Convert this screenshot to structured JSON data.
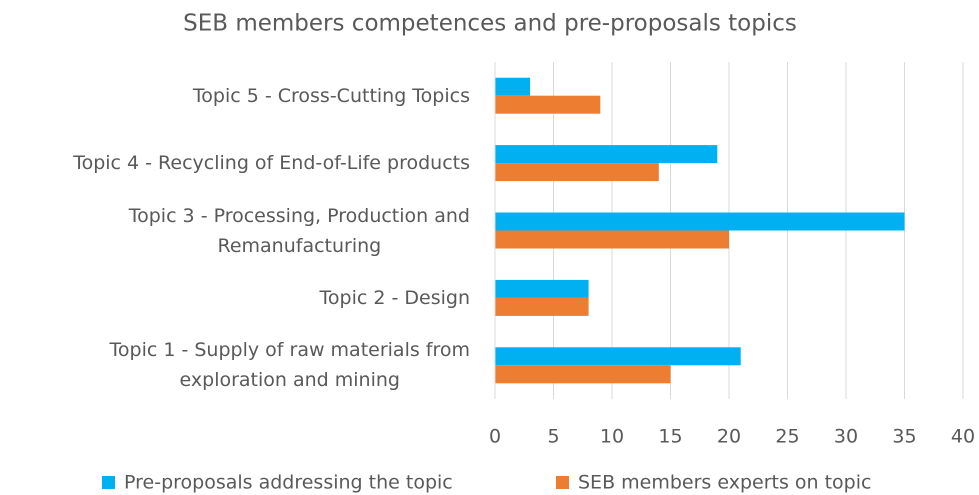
{
  "chart_data": {
    "type": "hbar",
    "title": "SEB members competences and pre-proposals topics",
    "categories": [
      "Topic 5 - Cross-Cutting Topics",
      "Topic 4 - Recycling of End-of-Life products",
      "Topic 3 - Processing, Production and\nRemanufacturing",
      "Topic 2 -  Design",
      "Topic 1 -  Supply of raw materials from\nexploration and mining"
    ],
    "series": [
      {
        "name": "Pre-proposals addressing the topic",
        "color": "#00b0f0",
        "values": [
          3,
          19,
          35,
          8,
          21
        ]
      },
      {
        "name": "SEB members experts on topic",
        "color": "#ed7d31",
        "values": [
          9,
          14,
          20,
          8,
          15
        ]
      }
    ],
    "xlim": [
      0,
      40
    ],
    "xticks": [
      0,
      5,
      10,
      15,
      20,
      25,
      30,
      35,
      40
    ],
    "grid": true,
    "legend": "bottom"
  }
}
